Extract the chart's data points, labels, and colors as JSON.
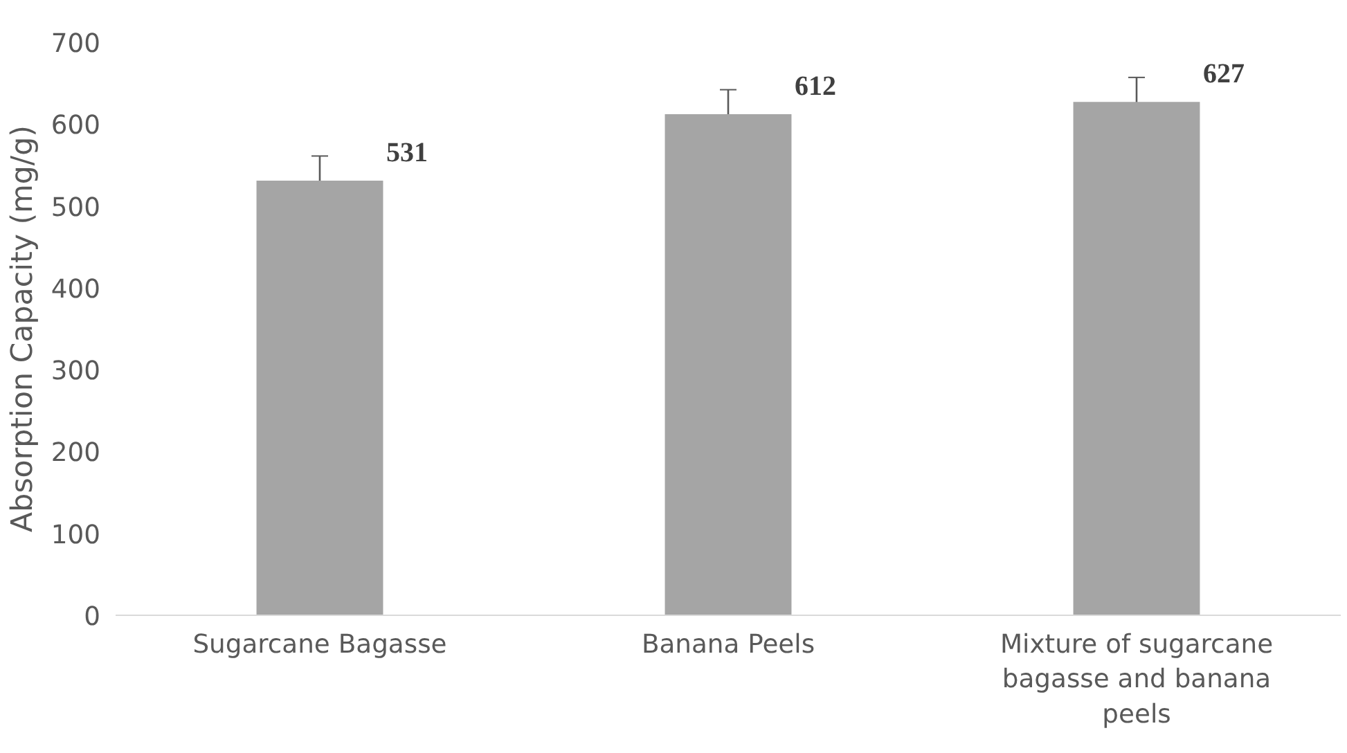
{
  "chart_data": {
    "type": "bar",
    "ylabel": "Absorption Capacity (mg/g)",
    "categories": [
      "Sugarcane Bagasse",
      "Banana Peels",
      "Mixture of sugarcane bagasse and banana peels"
    ],
    "values": [
      531,
      612,
      627
    ],
    "errors": [
      30,
      30,
      30
    ],
    "color": "#a5a5a5",
    "ylim": [
      0,
      700
    ],
    "yticks": [
      0,
      100,
      200,
      300,
      400,
      500,
      600,
      700
    ],
    "grid": false,
    "data_labels": true
  }
}
